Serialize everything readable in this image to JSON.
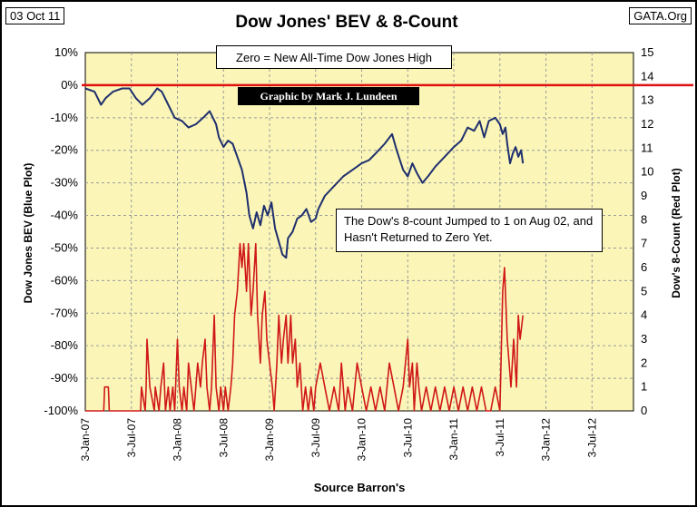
{
  "date_label": "03 Oct 11",
  "source_corner": "GATA.Org",
  "chart_data": {
    "type": "line",
    "title": "Dow Jones' BEV & 8-Count",
    "xlabel": "Source Barron's",
    "ylabel_left": "Dow Jones BEV (Blue Plot)",
    "ylabel_right": "Dow's 8-Count (Red Plot)",
    "ylim_left": [
      -100,
      10
    ],
    "ylim_right": [
      0,
      15
    ],
    "left_ticks": [
      "10%",
      "0%",
      "-10%",
      "-20%",
      "-30%",
      "-40%",
      "-50%",
      "-60%",
      "-70%",
      "-80%",
      "-90%",
      "-100%"
    ],
    "right_ticks": [
      "0",
      "1",
      "2",
      "3",
      "4",
      "5",
      "6",
      "7",
      "8",
      "9",
      "10",
      "11",
      "12",
      "13",
      "14",
      "15"
    ],
    "x_ticks": [
      "3-Jan-07",
      "3-Jul-07",
      "3-Jan-08",
      "3-Jul-08",
      "3-Jan-09",
      "3-Jul-09",
      "3-Jan-10",
      "3-Jul-10",
      "3-Jan-11",
      "3-Jul-11",
      "3-Jan-12",
      "3-Jul-12"
    ],
    "x_range_years": [
      2007.0,
      2012.95
    ],
    "zero_line_value": 0,
    "series": [
      {
        "name": "Dow Jones BEV",
        "color": "#1f2f6e",
        "x": [
          2007.0,
          2007.1,
          2007.17,
          2007.22,
          2007.3,
          2007.4,
          2007.48,
          2007.55,
          2007.62,
          2007.7,
          2007.78,
          2007.83,
          2007.9,
          2007.97,
          2008.05,
          2008.12,
          2008.2,
          2008.28,
          2008.35,
          2008.42,
          2008.45,
          2008.5,
          2008.55,
          2008.6,
          2008.65,
          2008.7,
          2008.75,
          2008.78,
          2008.82,
          2008.86,
          2008.9,
          2008.94,
          2008.98,
          2009.02,
          2009.06,
          2009.1,
          2009.14,
          2009.18,
          2009.2,
          2009.25,
          2009.3,
          2009.35,
          2009.4,
          2009.45,
          2009.5,
          2009.53,
          2009.6,
          2009.7,
          2009.8,
          2009.9,
          2010.0,
          2010.08,
          2010.15,
          2010.25,
          2010.33,
          2010.38,
          2010.45,
          2010.5,
          2010.55,
          2010.6,
          2010.66,
          2010.72,
          2010.8,
          2010.9,
          2011.0,
          2011.08,
          2011.15,
          2011.22,
          2011.28,
          2011.33,
          2011.38,
          2011.45,
          2011.5,
          2011.53,
          2011.56,
          2011.58,
          2011.61,
          2011.64,
          2011.67,
          2011.7,
          2011.73,
          2011.75
        ],
        "values": [
          -1,
          -2,
          -6,
          -4,
          -2,
          -1,
          -1,
          -4,
          -6,
          -4,
          -1,
          -2,
          -6,
          -10,
          -11,
          -13,
          -12,
          -10,
          -8,
          -12,
          -16,
          -19,
          -17,
          -18,
          -22,
          -26,
          -33,
          -40,
          -44,
          -39,
          -43,
          -37,
          -40,
          -36,
          -44,
          -48,
          -52,
          -53,
          -47,
          -45,
          -41,
          -40,
          -38,
          -42,
          -41,
          -38,
          -34,
          -31,
          -28,
          -26,
          -24,
          -23,
          -21,
          -18,
          -15,
          -20,
          -26,
          -28,
          -24,
          -27,
          -30,
          -28,
          -25,
          -22,
          -19,
          -17,
          -13,
          -14,
          -11,
          -16,
          -11,
          -10,
          -12,
          -15,
          -13,
          -18,
          -24,
          -21,
          -19,
          -22,
          -20,
          -24
        ]
      },
      {
        "name": "Dow's 8-Count",
        "color": "#d01818",
        "x": [
          2007.0,
          2007.2,
          2007.21,
          2007.25,
          2007.26,
          2007.6,
          2007.61,
          2007.65,
          2007.66,
          2007.67,
          2007.7,
          2007.75,
          2007.76,
          2007.8,
          2007.82,
          2007.85,
          2007.87,
          2007.9,
          2007.92,
          2007.95,
          2007.97,
          2008.0,
          2008.02,
          2008.05,
          2008.07,
          2008.1,
          2008.12,
          2008.15,
          2008.18,
          2008.2,
          2008.22,
          2008.25,
          2008.27,
          2008.3,
          2008.32,
          2008.35,
          2008.37,
          2008.4,
          2008.42,
          2008.45,
          2008.47,
          2008.5,
          2008.52,
          2008.55,
          2008.58,
          2008.6,
          2008.62,
          2008.65,
          2008.68,
          2008.7,
          2008.72,
          2008.75,
          2008.77,
          2008.8,
          2008.82,
          2008.85,
          2008.87,
          2008.9,
          2008.92,
          2008.95,
          2008.97,
          2009.0,
          2009.03,
          2009.05,
          2009.08,
          2009.1,
          2009.13,
          2009.15,
          2009.18,
          2009.2,
          2009.23,
          2009.25,
          2009.28,
          2009.3,
          2009.33,
          2009.36,
          2009.39,
          2009.42,
          2009.45,
          2009.48,
          2009.5,
          2009.55,
          2009.6,
          2009.65,
          2009.7,
          2009.75,
          2009.78,
          2009.82,
          2009.85,
          2009.9,
          2009.95,
          2010.0,
          2010.05,
          2010.1,
          2010.15,
          2010.2,
          2010.25,
          2010.3,
          2010.35,
          2010.4,
          2010.45,
          2010.5,
          2010.52,
          2010.55,
          2010.57,
          2010.6,
          2010.62,
          2010.65,
          2010.7,
          2010.75,
          2010.8,
          2010.85,
          2010.9,
          2010.95,
          2011.0,
          2011.05,
          2011.1,
          2011.15,
          2011.2,
          2011.25,
          2011.3,
          2011.35,
          2011.4,
          2011.45,
          2011.5,
          2011.53,
          2011.55,
          2011.58,
          2011.6,
          2011.62,
          2011.65,
          2011.68,
          2011.7,
          2011.72,
          2011.75
        ],
        "values": [
          0,
          0,
          1,
          1,
          0,
          0,
          1,
          0,
          1,
          3,
          1,
          0,
          1,
          0,
          1,
          2,
          0,
          1,
          0,
          1,
          0,
          3,
          1,
          0,
          1,
          0,
          2,
          1,
          0,
          1,
          2,
          1,
          2,
          3,
          1,
          0,
          1,
          4,
          1,
          0,
          1,
          0,
          1,
          0,
          1,
          2,
          4,
          5,
          7,
          6,
          7,
          5,
          7,
          4,
          5,
          7,
          4,
          2,
          4,
          5,
          3,
          2,
          1,
          0,
          2,
          4,
          2,
          3,
          4,
          2,
          4,
          2,
          3,
          1,
          2,
          0,
          1,
          0,
          1,
          0,
          1,
          2,
          1,
          0,
          1,
          0,
          2,
          0,
          1,
          0,
          2,
          1,
          0,
          1,
          0,
          1,
          0,
          2,
          1,
          0,
          1,
          3,
          1,
          2,
          0,
          2,
          1,
          0,
          1,
          0,
          1,
          0,
          1,
          0,
          1,
          0,
          1,
          0,
          1,
          0,
          1,
          0,
          0,
          1,
          0,
          5,
          6,
          3,
          2,
          1,
          3,
          1,
          4,
          3,
          4
        ]
      }
    ],
    "annotations": {
      "zero_note": "Zero = New All-Time Dow Jones High",
      "credit": "Graphic by Mark J. Lundeen",
      "eight_count_note": "The Dow's 8-count Jumped to 1 on Aug 02, and Hasn't Returned to Zero Yet."
    },
    "grid": true,
    "plot_background": "#fbf6b8"
  }
}
